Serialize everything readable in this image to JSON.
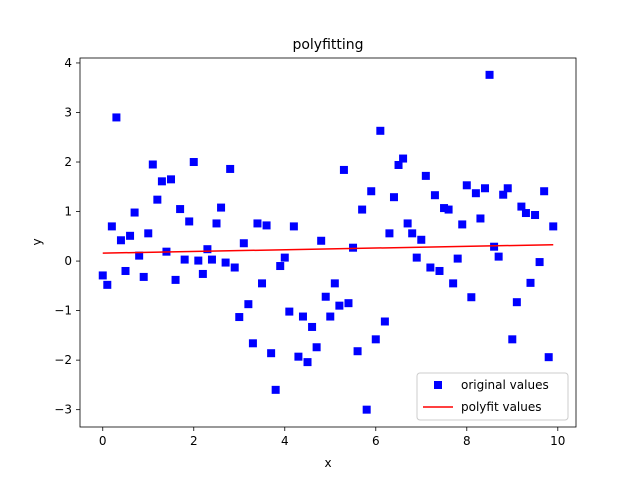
{
  "chart_data": {
    "type": "scatter",
    "title": "polyfitting",
    "xlabel": "x",
    "ylabel": "y",
    "xlim": [
      -0.5,
      10.4
    ],
    "ylim": [
      -3.35,
      4.1
    ],
    "xticks": [
      0,
      2,
      4,
      6,
      8,
      10
    ],
    "yticks": [
      -3,
      -2,
      -1,
      0,
      1,
      2,
      3,
      4
    ],
    "xtick_labels": [
      "0",
      "2",
      "4",
      "6",
      "8",
      "10"
    ],
    "ytick_labels": [
      "−3",
      "−2",
      "−1",
      "0",
      "1",
      "2",
      "3",
      "4"
    ],
    "grid": false,
    "legend_position": "lower-right",
    "series": [
      {
        "name": "original values",
        "kind": "scatter",
        "marker": "square",
        "color": "#0000ff",
        "points": [
          [
            0.0,
            -0.29
          ],
          [
            0.1,
            -0.48
          ],
          [
            0.2,
            0.7
          ],
          [
            0.3,
            2.9
          ],
          [
            0.4,
            0.42
          ],
          [
            0.5,
            -0.2
          ],
          [
            0.6,
            0.51
          ],
          [
            0.7,
            0.98
          ],
          [
            0.8,
            0.11
          ],
          [
            0.9,
            -0.32
          ],
          [
            1.0,
            0.56
          ],
          [
            1.1,
            1.95
          ],
          [
            1.2,
            1.24
          ],
          [
            1.3,
            1.61
          ],
          [
            1.4,
            0.19
          ],
          [
            1.5,
            1.65
          ],
          [
            1.6,
            -0.38
          ],
          [
            1.7,
            1.05
          ],
          [
            1.8,
            0.03
          ],
          [
            1.9,
            0.8
          ],
          [
            2.0,
            2.0
          ],
          [
            2.1,
            0.01
          ],
          [
            2.2,
            -0.26
          ],
          [
            2.3,
            0.24
          ],
          [
            2.4,
            0.03
          ],
          [
            2.5,
            0.76
          ],
          [
            2.6,
            1.08
          ],
          [
            2.7,
            -0.03
          ],
          [
            2.8,
            1.86
          ],
          [
            2.9,
            -0.13
          ],
          [
            3.0,
            -1.13
          ],
          [
            3.1,
            0.36
          ],
          [
            3.2,
            -0.87
          ],
          [
            3.3,
            -1.66
          ],
          [
            3.4,
            0.76
          ],
          [
            3.5,
            -0.45
          ],
          [
            3.6,
            0.72
          ],
          [
            3.7,
            -1.86
          ],
          [
            3.8,
            -2.6
          ],
          [
            3.9,
            -0.1
          ],
          [
            4.0,
            0.07
          ],
          [
            4.1,
            -1.02
          ],
          [
            4.2,
            0.7
          ],
          [
            4.3,
            -1.93
          ],
          [
            4.4,
            -1.12
          ],
          [
            4.5,
            -2.04
          ],
          [
            4.6,
            -1.33
          ],
          [
            4.7,
            -1.74
          ],
          [
            4.8,
            0.41
          ],
          [
            4.9,
            -0.72
          ],
          [
            5.0,
            -1.12
          ],
          [
            5.1,
            -0.45
          ],
          [
            5.2,
            -0.9
          ],
          [
            5.3,
            1.84
          ],
          [
            5.4,
            -0.85
          ],
          [
            5.5,
            0.27
          ],
          [
            5.6,
            -1.82
          ],
          [
            5.7,
            1.04
          ],
          [
            5.8,
            -3.0
          ],
          [
            5.9,
            1.41
          ],
          [
            6.0,
            -1.58
          ],
          [
            6.1,
            2.63
          ],
          [
            6.2,
            -1.22
          ],
          [
            6.3,
            0.56
          ],
          [
            6.4,
            1.29
          ],
          [
            6.5,
            1.94
          ],
          [
            6.6,
            2.07
          ],
          [
            6.7,
            0.76
          ],
          [
            6.8,
            0.56
          ],
          [
            6.9,
            0.07
          ],
          [
            7.0,
            0.43
          ],
          [
            7.1,
            1.72
          ],
          [
            7.2,
            -0.13
          ],
          [
            7.3,
            1.33
          ],
          [
            7.4,
            -0.2
          ],
          [
            7.5,
            1.07
          ],
          [
            7.6,
            1.04
          ],
          [
            7.7,
            -0.45
          ],
          [
            7.8,
            0.05
          ],
          [
            7.9,
            0.74
          ],
          [
            8.0,
            1.53
          ],
          [
            8.1,
            -0.73
          ],
          [
            8.2,
            1.37
          ],
          [
            8.3,
            0.86
          ],
          [
            8.4,
            1.47
          ],
          [
            8.5,
            3.76
          ],
          [
            8.6,
            0.29
          ],
          [
            8.7,
            0.09
          ],
          [
            8.8,
            1.34
          ],
          [
            8.9,
            1.47
          ],
          [
            9.0,
            -1.58
          ],
          [
            9.1,
            -0.83
          ],
          [
            9.2,
            1.1
          ],
          [
            9.3,
            0.97
          ],
          [
            9.4,
            -0.44
          ],
          [
            9.5,
            0.93
          ],
          [
            9.6,
            -0.02
          ],
          [
            9.7,
            1.41
          ],
          [
            9.8,
            -1.94
          ],
          [
            9.9,
            0.7
          ]
        ]
      },
      {
        "name": "polyfit values",
        "kind": "line",
        "color": "#ff0000",
        "points": [
          [
            0.0,
            0.16
          ],
          [
            9.9,
            0.33
          ]
        ]
      }
    ]
  }
}
